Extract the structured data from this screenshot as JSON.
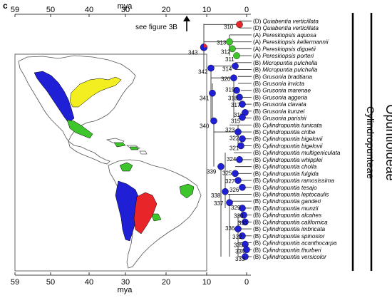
{
  "panel_label": "c",
  "axis": {
    "unit": "mya",
    "ticks": [
      "59",
      "50",
      "40",
      "30",
      "20",
      "10",
      "0"
    ]
  },
  "see_figure": "see figure 3B",
  "clades": {
    "subfamily": "Opuntioideae",
    "tribe": "Cylindropunteae"
  },
  "colors": {
    "D": "#e8262a",
    "A": "#3ec52b",
    "B": "#1f1fd6",
    "C": "#f2ee1f",
    "land": "#ffffff",
    "outline": "#555555"
  },
  "tips": [
    {
      "area": "(D)",
      "name": "Quiabentia verticillata"
    },
    {
      "area": "(D)",
      "name": "Quiabentia verticillata"
    },
    {
      "area": "(A)",
      "name": "Pereskiopsis aquosa"
    },
    {
      "area": "(A)",
      "name": "Pereskiopsis kellermannii"
    },
    {
      "area": "(A)",
      "name": "Pereskiopsis diguetii"
    },
    {
      "area": "(A)",
      "name": "Pereskiopsis porteri"
    },
    {
      "area": "(B)",
      "name": "Micropuntia pulchella"
    },
    {
      "area": "(B)",
      "name": "Micropuntia pulchella"
    },
    {
      "area": "(B)",
      "name": "Grusonia bradtiana"
    },
    {
      "area": "(B)",
      "name": "Grusonia invicta"
    },
    {
      "area": "(B)",
      "name": "Grusonia marenae"
    },
    {
      "area": "(B)",
      "name": "Grusonia aggeria"
    },
    {
      "area": "(B)",
      "name": "Grusonia clavata"
    },
    {
      "area": "(B)",
      "name": "Grusonia kunzei"
    },
    {
      "area": "(B)",
      "name": "Grusonia parishii"
    },
    {
      "area": "(B)",
      "name": "Cylindropuntia tunicata"
    },
    {
      "area": "(B)",
      "name": "Cylindropuntia ciribe"
    },
    {
      "area": "(B)",
      "name": "Cylindropuntia bigelovii"
    },
    {
      "area": "(B)",
      "name": "Cylindropuntia bigelovii"
    },
    {
      "area": "(B)",
      "name": "Cylindropuntia multigeniculata"
    },
    {
      "area": "(B)",
      "name": "Cylindropuntia whipplei"
    },
    {
      "area": "(B)",
      "name": "Cylindropuntia cholla"
    },
    {
      "area": "(B)",
      "name": "Cylindropuntia fulgida"
    },
    {
      "area": "(B)",
      "name": "Cylindropuntia ramosissima"
    },
    {
      "area": "(B)",
      "name": "Cylindropuntia tesajo"
    },
    {
      "area": "(B)",
      "name": "Cylindropuntia leptocaulis"
    },
    {
      "area": "(B)",
      "name": "Cylindropuntia ganderi"
    },
    {
      "area": "(B)",
      "name": "Cylindropuntia munzii"
    },
    {
      "area": "(B)",
      "name": "Cylindropuntia alcahes"
    },
    {
      "area": "(B)",
      "name": "Cylindropuntia californica"
    },
    {
      "area": "(B)",
      "name": "Cylindropuntia imbricata"
    },
    {
      "area": "(B)",
      "name": "Cylindropuntia spinosior"
    },
    {
      "area": "(B)",
      "name": "Cylindropuntia acanthocarpa"
    },
    {
      "area": "(B)",
      "name": "Cylindropuntia thurberi"
    },
    {
      "area": "(B)",
      "name": "Cylindropuntia versicolor"
    }
  ],
  "node_labels": [
    "310",
    "313",
    "312",
    "311",
    "314",
    "320",
    "319",
    "318",
    "317",
    "316",
    "315",
    "323",
    "322",
    "321",
    "324",
    "325",
    "327",
    "326",
    "330",
    "331",
    "329",
    "336",
    "332",
    "335",
    "334",
    "333",
    "337",
    "338",
    "339",
    "340",
    "341",
    "342",
    "343"
  ]
}
